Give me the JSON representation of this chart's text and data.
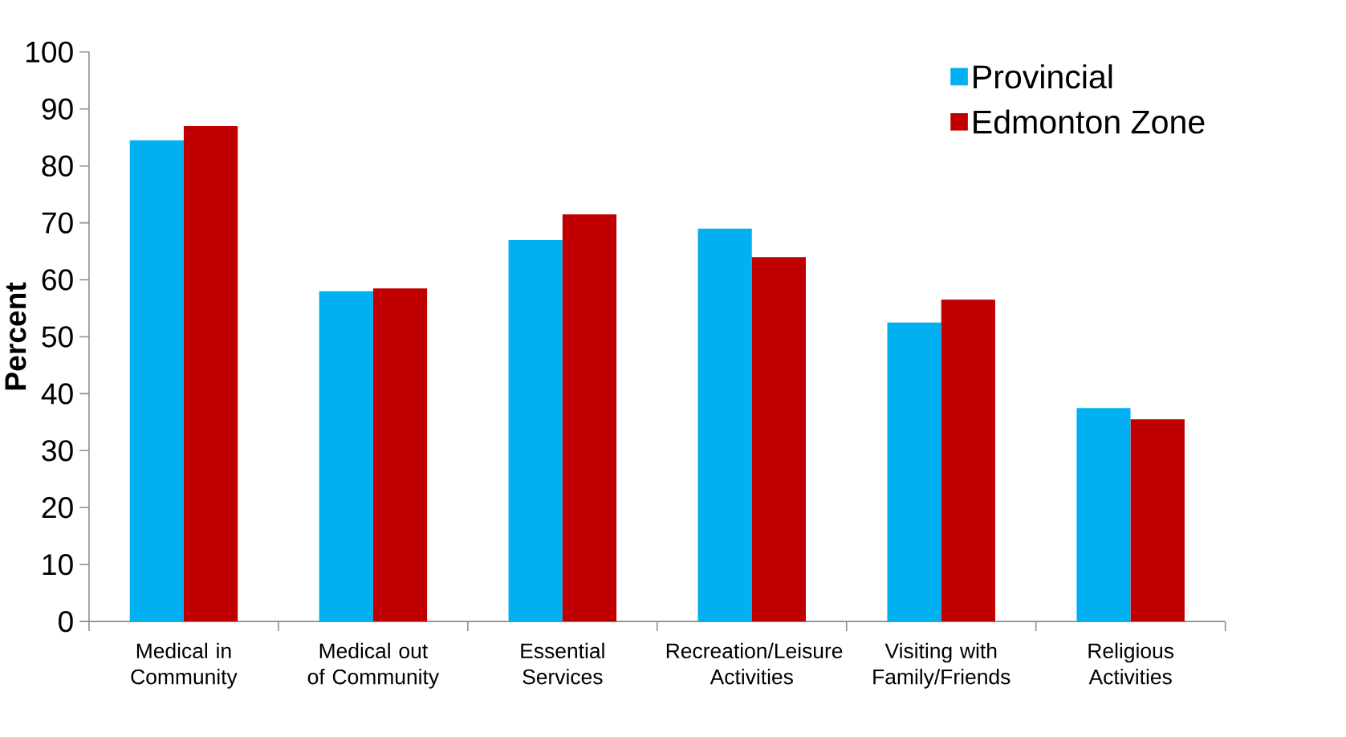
{
  "chart_data": {
    "type": "bar",
    "ylabel": "Percent",
    "categories": [
      "Medical in Community",
      "Medical out of Community",
      "Essential Services",
      "Recreation/Leisure Activities",
      "Visiting with Family/Friends",
      "Religious Activities"
    ],
    "series": [
      {
        "name": "Provincial",
        "color": "#00b0f0",
        "values": [
          84.5,
          58,
          67,
          69,
          52.5,
          37.5
        ]
      },
      {
        "name": "Edmonton Zone",
        "color": "#c00000",
        "values": [
          87,
          58.5,
          71.5,
          64,
          56.5,
          35.5
        ]
      }
    ],
    "ylim": [
      0,
      100
    ],
    "yticks": [
      0,
      10,
      20,
      30,
      40,
      50,
      60,
      70,
      80,
      90,
      100
    ],
    "legend": "top right",
    "grid": false
  }
}
